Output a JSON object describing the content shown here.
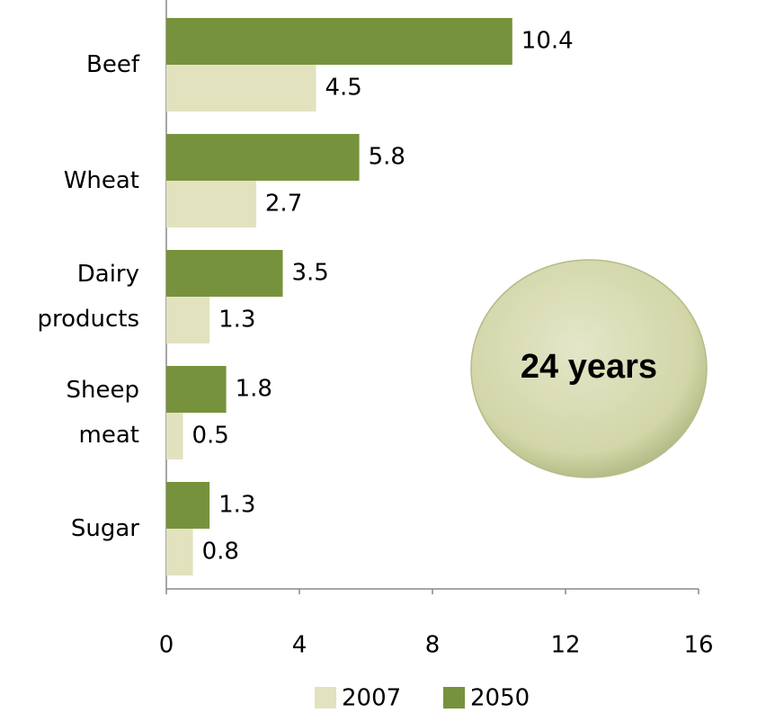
{
  "chart_data": {
    "type": "bar",
    "orientation": "horizontal",
    "categories": [
      "Beef",
      "Wheat",
      "Dairy products",
      "Sheep meat",
      "Sugar"
    ],
    "series": [
      {
        "name": "2007",
        "color": "#e2e2bf",
        "values": [
          4.5,
          2.7,
          1.3,
          0.5,
          0.8
        ]
      },
      {
        "name": "2050",
        "color": "#77923c",
        "values": [
          10.4,
          5.8,
          3.5,
          1.8,
          1.3
        ]
      }
    ],
    "xlim": [
      0,
      16
    ],
    "xticks": [
      0,
      4,
      8,
      12,
      16
    ],
    "legend": "bottom",
    "annotation": "24 years"
  }
}
